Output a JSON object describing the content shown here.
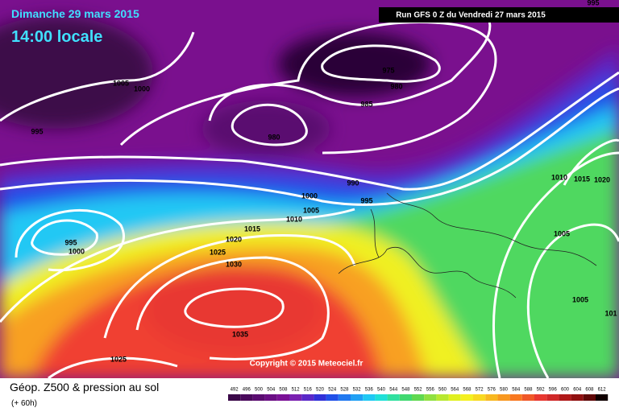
{
  "header": {
    "date": "Dimanche 29 mars 2015",
    "time": "14:00 locale",
    "run": "Run GFS 0 Z du Vendredi 27 mars 2015"
  },
  "copyright": "Copyright © 2015 Meteociel.fr",
  "legend": {
    "title": "Géop. Z500 & pression au sol",
    "lead": "(+ 60h)",
    "scale": [
      492,
      496,
      500,
      504,
      508,
      512,
      516,
      520,
      524,
      528,
      532,
      536,
      540,
      544,
      548,
      552,
      556,
      560,
      564,
      568,
      572,
      576,
      580,
      584,
      588,
      592,
      596,
      600,
      604,
      608,
      612
    ],
    "colors": [
      "#3a0848",
      "#4a0a5c",
      "#5a0c70",
      "#6a0e84",
      "#7a1096",
      "#7a20b0",
      "#5a28c8",
      "#3030d8",
      "#2050e8",
      "#2078f0",
      "#20a0f4",
      "#20c8f4",
      "#20e0d8",
      "#30e0a0",
      "#40d870",
      "#60d850",
      "#90e040",
      "#b8e830",
      "#e0f020",
      "#f4f020",
      "#f8d820",
      "#f8b820",
      "#f89820",
      "#f87820",
      "#f05828",
      "#e83830",
      "#d02828",
      "#b01818",
      "#901010",
      "#600808",
      "#100000"
    ]
  },
  "isobar_labels": [
    1005,
    1000,
    995,
    975,
    980,
    985,
    980,
    990,
    1000,
    995,
    1005,
    1010,
    1015,
    1020,
    1025,
    1030,
    995,
    1000,
    1035,
    1025,
    1010,
    1015,
    1020,
    1005,
    1005,
    101,
    995
  ]
}
